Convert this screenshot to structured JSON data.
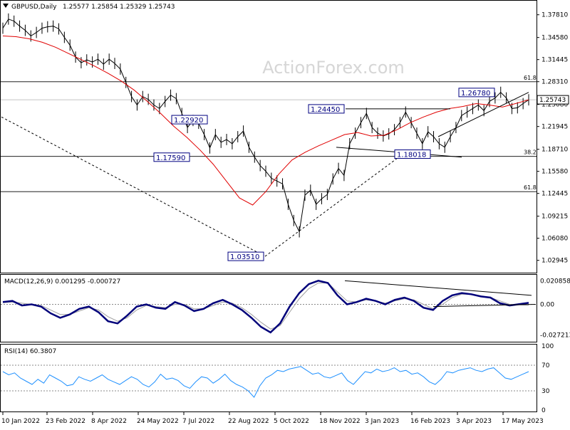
{
  "header": {
    "symbol": "GBPUSD,Daily",
    "ohlc": "1.25577 1.25854 1.25329 1.25743"
  },
  "watermark": "ActionForex.com",
  "chart_data": [
    {
      "type": "line",
      "name": "price",
      "title": "GBPUSD,Daily",
      "ylim": [
        1.015,
        1.395
      ],
      "y_ticks": [
        "1.37810",
        "1.34580",
        "1.31445",
        "1.28310",
        "1.25080",
        "1.21945",
        "1.18710",
        "1.15580",
        "1.12445",
        "1.09215",
        "1.06080",
        "1.02945"
      ],
      "current_price": "1.25743",
      "levels": [
        {
          "value": 1.283,
          "label": "61.8"
        },
        {
          "value": 1.177,
          "label": "38.2"
        },
        {
          "value": 1.127,
          "label": "61.8"
        }
      ],
      "annotations": [
        "1.03510",
        "1.17590",
        "1.22920",
        "1.24450",
        "1.18018",
        "1.26780"
      ],
      "close": [
        1.359,
        1.372,
        1.369,
        1.362,
        1.356,
        1.348,
        1.353,
        1.359,
        1.361,
        1.362,
        1.358,
        1.346,
        1.335,
        1.318,
        1.31,
        1.314,
        1.311,
        1.315,
        1.308,
        1.315,
        1.309,
        1.301,
        1.282,
        1.262,
        1.25,
        1.262,
        1.258,
        1.25,
        1.245,
        1.255,
        1.264,
        1.259,
        1.238,
        1.218,
        1.228,
        1.224,
        1.208,
        1.189,
        1.208,
        1.197,
        1.201,
        1.195,
        1.205,
        1.213,
        1.19,
        1.176,
        1.164,
        1.156,
        1.146,
        1.142,
        1.138,
        1.109,
        1.086,
        1.07,
        1.122,
        1.129,
        1.109,
        1.117,
        1.123,
        1.145,
        1.16,
        1.15,
        1.195,
        1.21,
        1.225,
        1.238,
        1.218,
        1.21,
        1.206,
        1.209,
        1.215,
        1.225,
        1.24,
        1.225,
        1.21,
        1.195,
        1.212,
        1.205,
        1.195,
        1.19,
        1.205,
        1.218,
        1.235,
        1.24,
        1.245,
        1.25,
        1.242,
        1.255,
        1.26,
        1.268,
        1.26,
        1.245,
        1.246,
        1.252,
        1.2574
      ],
      "ma": [
        1.348,
        1.347,
        1.344,
        1.339,
        1.332,
        1.323,
        1.314,
        1.305,
        1.295,
        1.284,
        1.271,
        1.255,
        1.238,
        1.22,
        1.204,
        1.186,
        1.166,
        1.142,
        1.118,
        1.108,
        1.127,
        1.152,
        1.172,
        1.183,
        1.192,
        1.2,
        1.208,
        1.211,
        1.206,
        1.207,
        1.215,
        1.225,
        1.233,
        1.24,
        1.245,
        1.248,
        1.252,
        1.25,
        1.247,
        1.252,
        1.2574
      ],
      "x_ticks": [
        "10 Jan 2022",
        "23 Feb 2022",
        "8 Apr 2022",
        "24 May 2022",
        "7 Jul 2022",
        "22 Aug 2022",
        "5 Oct 2022",
        "18 Nov 2022",
        "3 Jan 2023",
        "16 Feb 2023",
        "3 Apr 2023",
        "17 May 2023"
      ]
    },
    {
      "type": "line",
      "name": "macd",
      "title": "MACD(12,26,9) 0.001295 -0.000727",
      "ylim": [
        -0.032,
        0.025
      ],
      "y_ticks": [
        "0.020858",
        "0.00",
        "-0.027213"
      ],
      "macd": [
        0.002,
        0.003,
        -0.001,
        0.0,
        -0.002,
        -0.008,
        -0.012,
        -0.009,
        -0.004,
        -0.002,
        -0.007,
        -0.015,
        -0.017,
        -0.01,
        -0.002,
        0.0,
        -0.003,
        -0.004,
        0.002,
        -0.001,
        -0.006,
        -0.004,
        0.001,
        0.004,
        0.0,
        -0.005,
        -0.012,
        -0.02,
        -0.025,
        -0.017,
        -0.002,
        0.01,
        0.018,
        0.021,
        0.019,
        0.008,
        0.0,
        0.002,
        0.005,
        0.003,
        0.0,
        0.004,
        0.006,
        0.003,
        -0.003,
        -0.005,
        0.003,
        0.008,
        0.01,
        0.009,
        0.007,
        0.006,
        0.001,
        -0.001,
        0.0001,
        0.0013
      ],
      "signal": [
        0.0015,
        0.002,
        0.001,
        0.0,
        -0.001,
        -0.005,
        -0.009,
        -0.009,
        -0.006,
        -0.003,
        -0.005,
        -0.011,
        -0.015,
        -0.012,
        -0.005,
        -0.001,
        -0.002,
        -0.003,
        0.0,
        0.0,
        -0.004,
        -0.004,
        -0.001,
        0.002,
        0.001,
        -0.003,
        -0.009,
        -0.016,
        -0.022,
        -0.019,
        -0.007,
        0.005,
        0.014,
        0.019,
        0.019,
        0.011,
        0.003,
        0.002,
        0.004,
        0.003,
        0.001,
        0.003,
        0.005,
        0.004,
        0.0,
        -0.004,
        0.0,
        0.006,
        0.009,
        0.009,
        0.0075,
        0.006,
        0.003,
        0.0,
        -0.0005,
        -0.0007
      ]
    },
    {
      "type": "line",
      "name": "rsi",
      "title": "RSI(14) 60.3807",
      "ylim": [
        0,
        100
      ],
      "y_ticks": [
        "100",
        "70",
        "30",
        "0"
      ],
      "levels": [
        70,
        30
      ],
      "values": [
        60,
        55,
        58,
        50,
        45,
        40,
        48,
        42,
        55,
        50,
        45,
        38,
        40,
        52,
        48,
        45,
        50,
        55,
        48,
        44,
        40,
        46,
        52,
        48,
        40,
        36,
        44,
        56,
        48,
        50,
        46,
        38,
        34,
        44,
        52,
        50,
        42,
        48,
        56,
        46,
        40,
        36,
        30,
        20,
        38,
        50,
        55,
        62,
        60,
        64,
        66,
        68,
        62,
        56,
        58,
        52,
        50,
        54,
        58,
        46,
        40,
        50,
        60,
        58,
        64,
        60,
        62,
        66,
        60,
        62,
        56,
        58,
        52,
        44,
        40,
        48,
        60,
        58,
        62,
        64,
        66,
        62,
        60,
        64,
        66,
        58,
        50,
        48,
        52,
        56,
        60
      ]
    }
  ]
}
